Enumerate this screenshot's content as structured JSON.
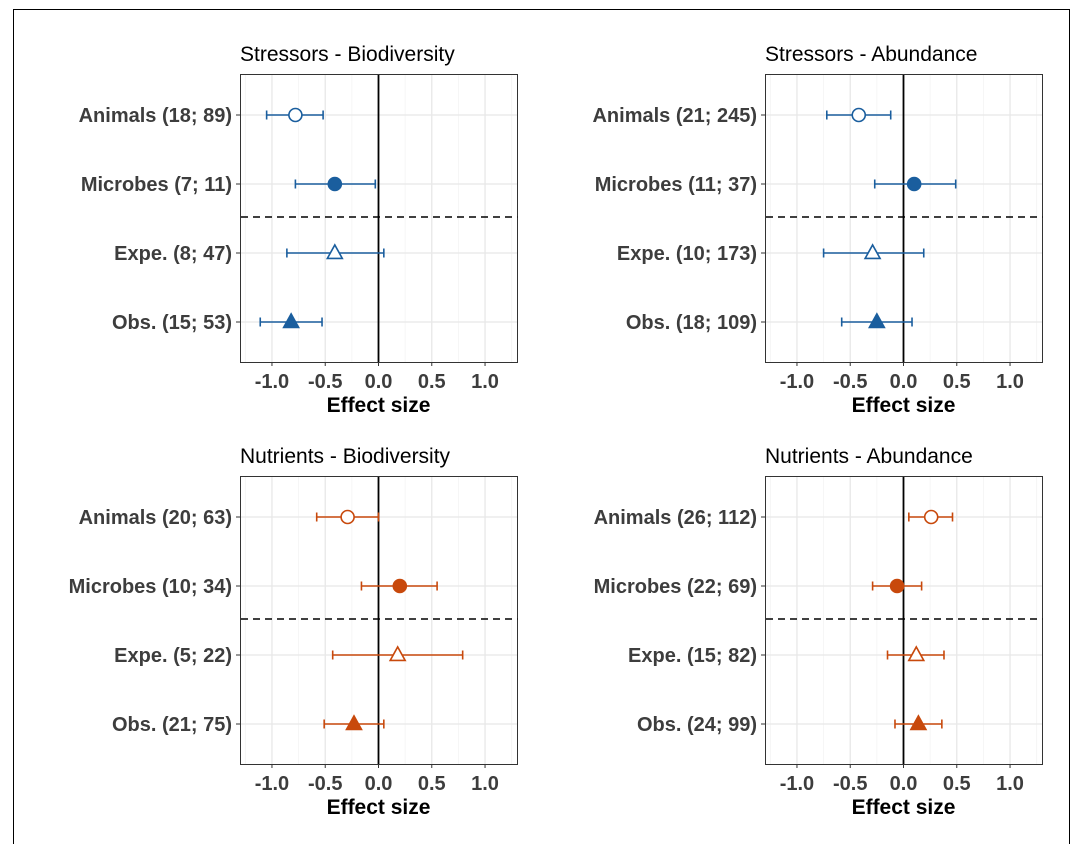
{
  "chart_data": [
    {
      "type": "forest",
      "title": "Stressors - Biodiversity",
      "xlabel": "Effect size",
      "xlim": [
        -1.3,
        1.3
      ],
      "xticks": [
        "-1.0",
        "-0.5",
        "0.0",
        "0.5",
        "1.0"
      ],
      "color": "#1a5e9e",
      "rows": [
        {
          "label": "Animals (18; 89)",
          "estimate": -0.78,
          "lower": -1.05,
          "upper": -0.52,
          "marker": "circle-open"
        },
        {
          "label": "Microbes (7; 11)",
          "estimate": -0.41,
          "lower": -0.78,
          "upper": -0.03,
          "marker": "circle-filled"
        },
        {
          "label": "Expe. (8; 47)",
          "estimate": -0.41,
          "lower": -0.86,
          "upper": 0.05,
          "marker": "triangle-open"
        },
        {
          "label": "Obs. (15; 53)",
          "estimate": -0.82,
          "lower": -1.11,
          "upper": -0.53,
          "marker": "triangle-filled"
        }
      ]
    },
    {
      "type": "forest",
      "title": "Stressors - Abundance",
      "xlabel": "Effect size",
      "xlim": [
        -1.3,
        1.3
      ],
      "xticks": [
        "-1.0",
        "-0.5",
        "0.0",
        "0.5",
        "1.0"
      ],
      "color": "#1a5e9e",
      "rows": [
        {
          "label": "Animals (21; 245)",
          "estimate": -0.42,
          "lower": -0.72,
          "upper": -0.12,
          "marker": "circle-open"
        },
        {
          "label": "Microbes (11; 37)",
          "estimate": 0.1,
          "lower": -0.27,
          "upper": 0.49,
          "marker": "circle-filled"
        },
        {
          "label": "Expe. (10; 173)",
          "estimate": -0.29,
          "lower": -0.75,
          "upper": 0.19,
          "marker": "triangle-open"
        },
        {
          "label": "Obs. (18; 109)",
          "estimate": -0.25,
          "lower": -0.58,
          "upper": 0.08,
          "marker": "triangle-filled"
        }
      ]
    },
    {
      "type": "forest",
      "title": "Nutrients - Biodiversity",
      "xlabel": "Effect size",
      "xlim": [
        -1.3,
        1.3
      ],
      "xticks": [
        "-1.0",
        "-0.5",
        "0.0",
        "0.5",
        "1.0"
      ],
      "color": "#c8490c",
      "rows": [
        {
          "label": "Animals (20; 63)",
          "estimate": -0.29,
          "lower": -0.58,
          "upper": 0.0,
          "marker": "circle-open"
        },
        {
          "label": "Microbes (10; 34)",
          "estimate": 0.2,
          "lower": -0.16,
          "upper": 0.55,
          "marker": "circle-filled"
        },
        {
          "label": "Expe. (5; 22)",
          "estimate": 0.18,
          "lower": -0.43,
          "upper": 0.79,
          "marker": "triangle-open"
        },
        {
          "label": "Obs. (21; 75)",
          "estimate": -0.23,
          "lower": -0.51,
          "upper": 0.05,
          "marker": "triangle-filled"
        }
      ]
    },
    {
      "type": "forest",
      "title": "Nutrients - Abundance",
      "xlabel": "Effect size",
      "xlim": [
        -1.3,
        1.3
      ],
      "xticks": [
        "-1.0",
        "-0.5",
        "0.0",
        "0.5",
        "1.0"
      ],
      "color": "#c8490c",
      "rows": [
        {
          "label": "Animals (26; 112)",
          "estimate": 0.26,
          "lower": 0.05,
          "upper": 0.46,
          "marker": "circle-open"
        },
        {
          "label": "Microbes (22; 69)",
          "estimate": -0.06,
          "lower": -0.29,
          "upper": 0.17,
          "marker": "circle-filled"
        },
        {
          "label": "Expe. (15; 82)",
          "estimate": 0.12,
          "lower": -0.15,
          "upper": 0.38,
          "marker": "triangle-open"
        },
        {
          "label": "Obs. (24; 99)",
          "estimate": 0.14,
          "lower": -0.08,
          "upper": 0.36,
          "marker": "triangle-filled"
        }
      ]
    }
  ]
}
